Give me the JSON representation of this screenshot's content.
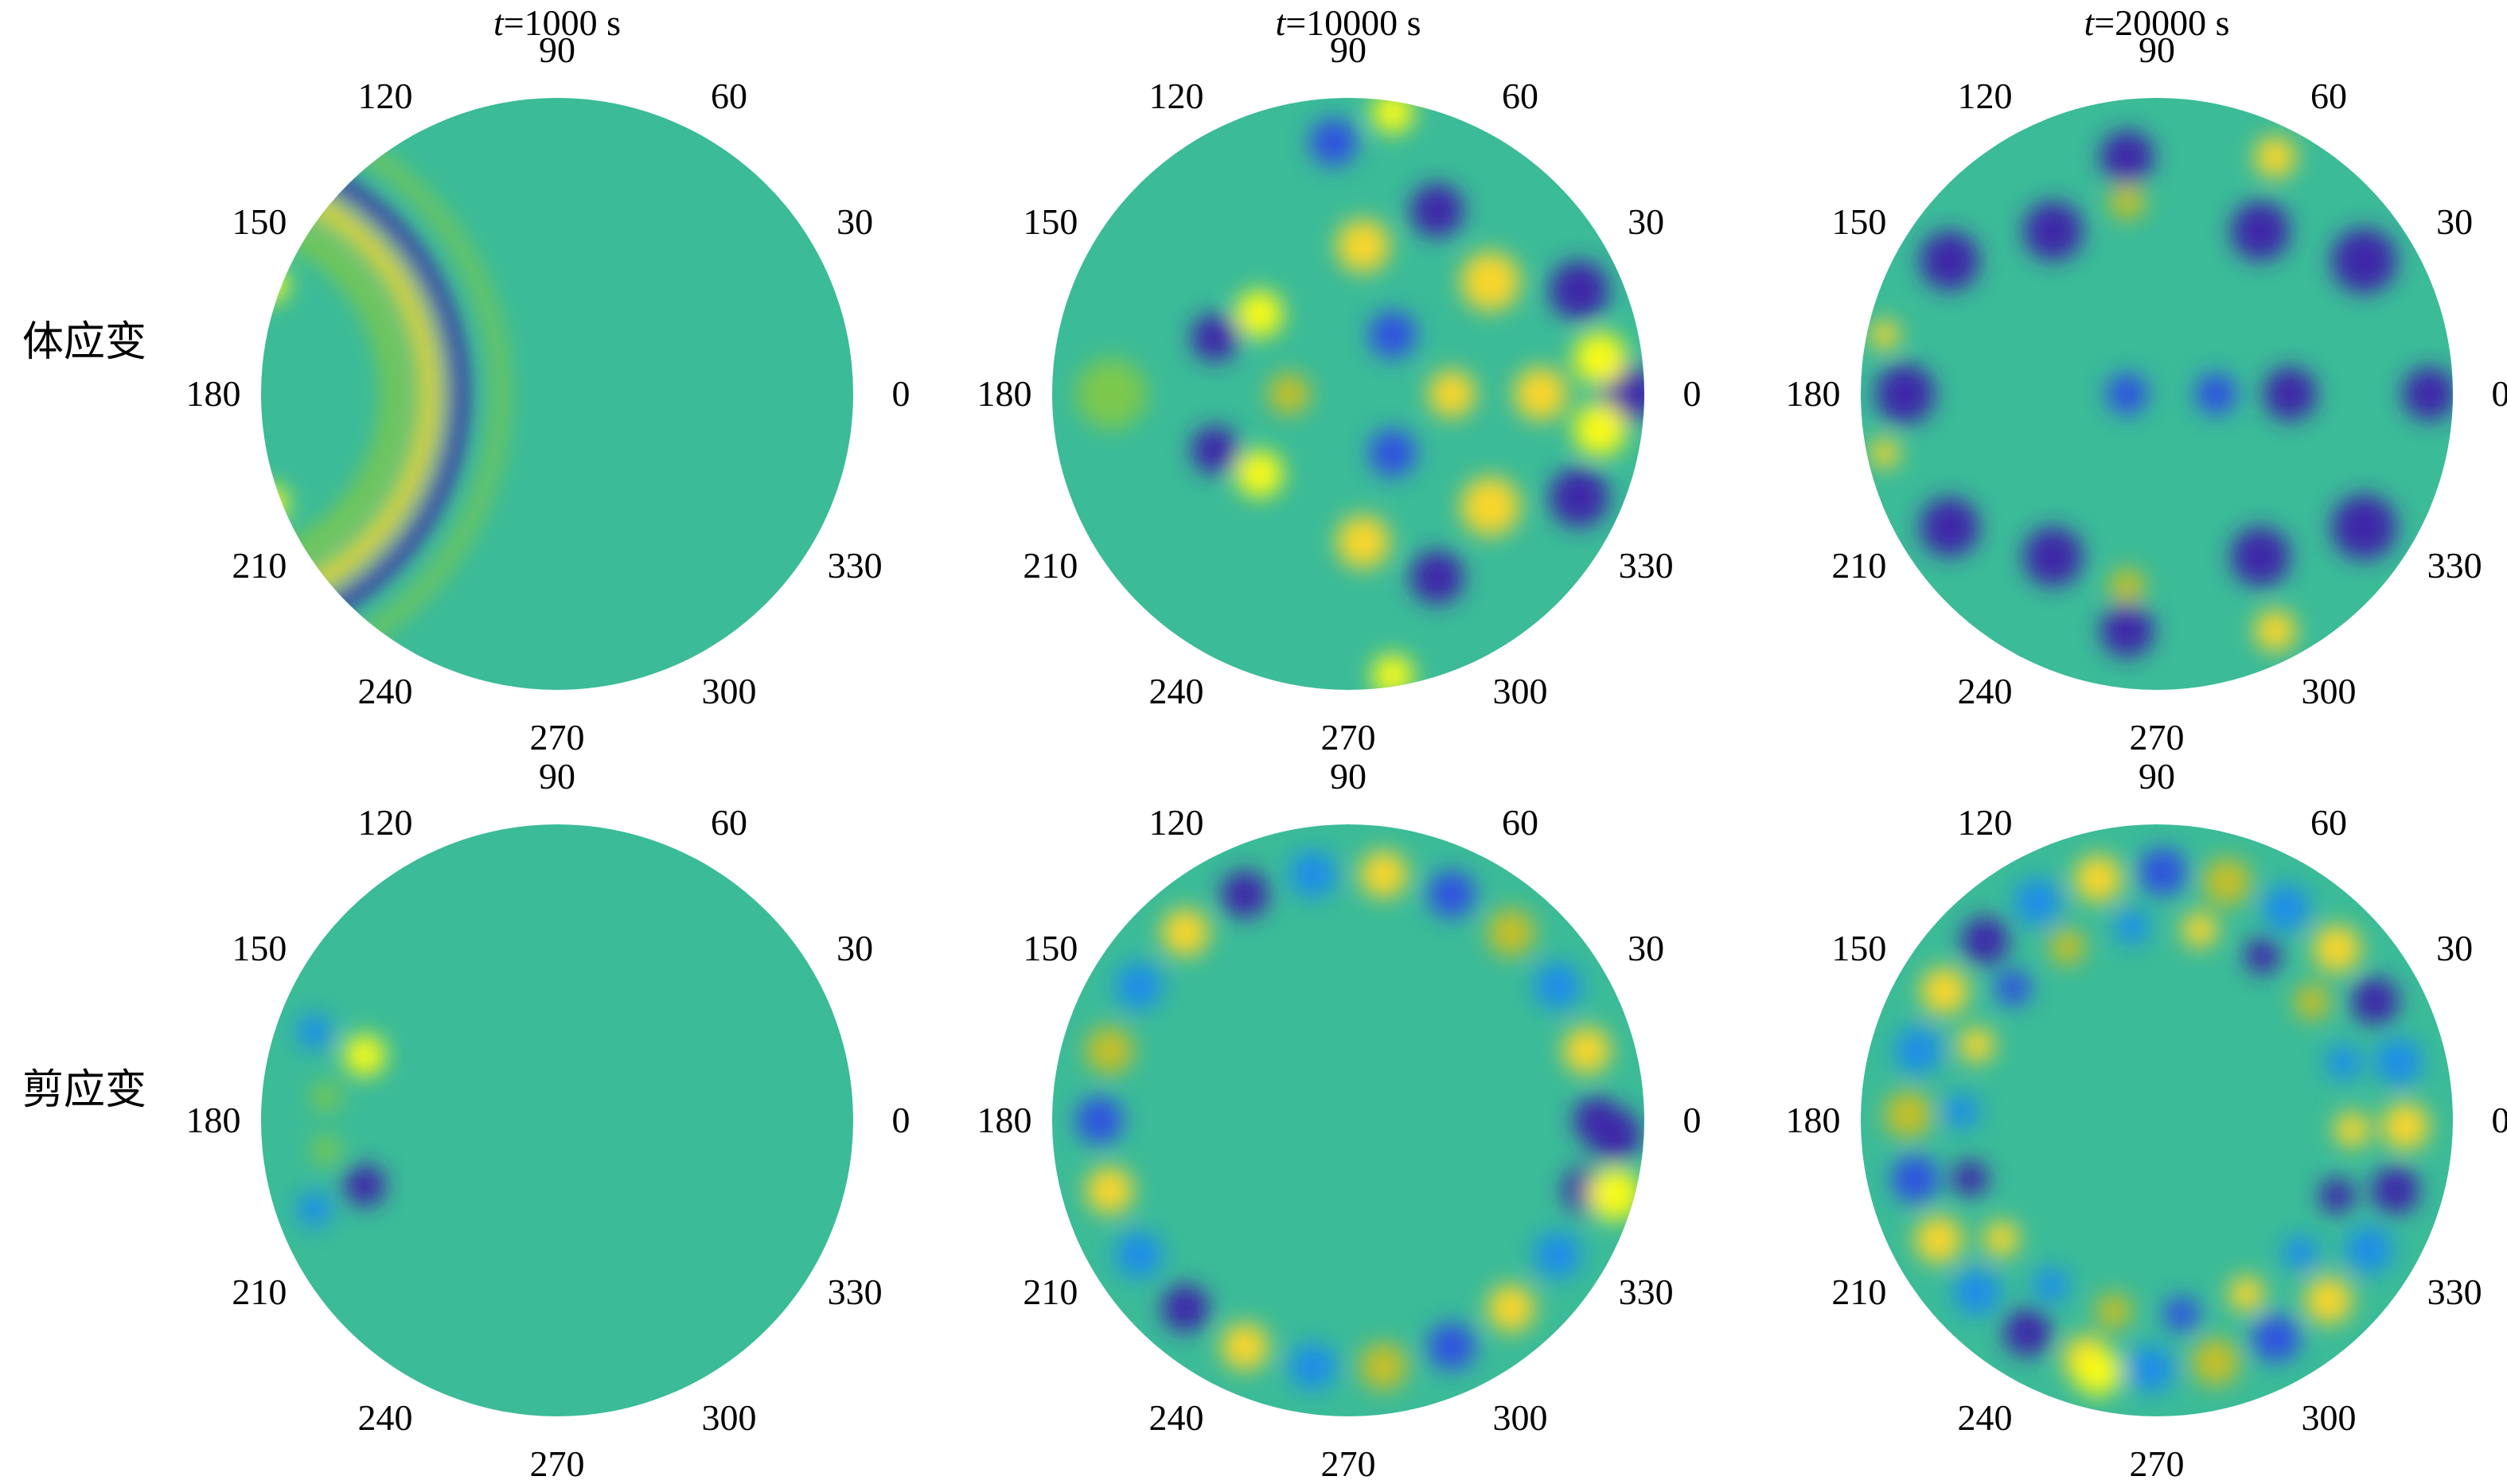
{
  "figure": {
    "column_titles": [
      {
        "var": "t",
        "rest": "=1000 s"
      },
      {
        "var": "t",
        "rest": "=10000 s"
      },
      {
        "var": "t",
        "rest": "=20000 s"
      }
    ],
    "row_labels": [
      "体应变",
      "剪应变"
    ]
  },
  "chart_data": {
    "type": "heatmap",
    "projection": "polar",
    "angular_ticks": [
      "0",
      "30",
      "60",
      "90",
      "120",
      "150",
      "180",
      "210",
      "240",
      "270",
      "300",
      "330"
    ],
    "colormap": [
      "#3e26a8",
      "#2f51e0",
      "#1e8ee8",
      "#16b5c9",
      "#3bbb98",
      "#7cc84e",
      "#c6bf28",
      "#f9d62b",
      "#f9fb15"
    ],
    "background_level": 0.45,
    "panels": [
      {
        "row": "体应变",
        "time": "t=1000 s",
        "features": [
          {
            "kind": "arc",
            "cx": -1.15,
            "cy": 0,
            "r": 0.82,
            "w": 0.06,
            "level": 0.05
          },
          {
            "kind": "arc",
            "cx": -1.15,
            "cy": 0,
            "r": 0.72,
            "w": 0.07,
            "level": 0.9
          },
          {
            "kind": "arc",
            "cx": -1.15,
            "cy": 0,
            "r": 0.96,
            "w": 0.05,
            "level": 0.62
          },
          {
            "kind": "arc",
            "cx": -1.15,
            "cy": 0,
            "r": 0.6,
            "w": 0.08,
            "level": 0.6
          },
          {
            "kind": "blob",
            "x": -0.97,
            "y": 0.37,
            "r": 0.06,
            "level": 0.95
          },
          {
            "kind": "blob",
            "x": -0.97,
            "y": -0.37,
            "r": 0.06,
            "level": 0.95
          }
        ]
      },
      {
        "row": "体应变",
        "time": "t=10000 s",
        "features": [
          {
            "kind": "blob",
            "x": 0.95,
            "y": 0.0,
            "r": 0.1,
            "level": 0.05
          },
          {
            "kind": "blob",
            "x": 0.85,
            "y": 0.12,
            "r": 0.09,
            "level": 0.95
          },
          {
            "kind": "blob",
            "x": 0.85,
            "y": -0.12,
            "r": 0.09,
            "level": 0.95
          },
          {
            "kind": "blob",
            "x": 0.65,
            "y": 0.0,
            "r": 0.09,
            "level": 0.9
          },
          {
            "kind": "blob",
            "x": 0.78,
            "y": 0.35,
            "r": 0.1,
            "level": 0.05
          },
          {
            "kind": "blob",
            "x": 0.78,
            "y": -0.35,
            "r": 0.1,
            "level": 0.05
          },
          {
            "kind": "blob",
            "x": 0.48,
            "y": 0.38,
            "r": 0.1,
            "level": 0.9
          },
          {
            "kind": "blob",
            "x": 0.48,
            "y": -0.38,
            "r": 0.1,
            "level": 0.9
          },
          {
            "kind": "blob",
            "x": 0.3,
            "y": 0.62,
            "r": 0.09,
            "level": 0.05
          },
          {
            "kind": "blob",
            "x": 0.3,
            "y": -0.62,
            "r": 0.09,
            "level": 0.05
          },
          {
            "kind": "blob",
            "x": 0.05,
            "y": 0.5,
            "r": 0.09,
            "level": 0.85
          },
          {
            "kind": "blob",
            "x": 0.05,
            "y": -0.5,
            "r": 0.09,
            "level": 0.85
          },
          {
            "kind": "blob",
            "x": 0.35,
            "y": 0.0,
            "r": 0.08,
            "level": 0.85
          },
          {
            "kind": "blob",
            "x": 0.15,
            "y": 0.2,
            "r": 0.08,
            "level": 0.08
          },
          {
            "kind": "blob",
            "x": 0.15,
            "y": -0.2,
            "r": 0.08,
            "level": 0.08
          },
          {
            "kind": "blob",
            "x": -0.3,
            "y": 0.27,
            "r": 0.08,
            "level": 0.95
          },
          {
            "kind": "blob",
            "x": -0.3,
            "y": -0.27,
            "r": 0.08,
            "level": 0.95
          },
          {
            "kind": "blob",
            "x": -0.45,
            "y": 0.19,
            "r": 0.08,
            "level": 0.05
          },
          {
            "kind": "blob",
            "x": -0.45,
            "y": -0.19,
            "r": 0.08,
            "level": 0.05
          },
          {
            "kind": "blob",
            "x": -0.2,
            "y": 0.0,
            "r": 0.07,
            "level": 0.8
          },
          {
            "kind": "blob",
            "x": -0.05,
            "y": 0.85,
            "r": 0.08,
            "level": 0.1
          },
          {
            "kind": "blob",
            "x": 0.15,
            "y": 0.95,
            "r": 0.07,
            "level": 0.95
          },
          {
            "kind": "blob",
            "x": 0.15,
            "y": -0.95,
            "r": 0.07,
            "level": 0.95
          },
          {
            "kind": "blob",
            "x": -0.8,
            "y": 0.0,
            "r": 0.12,
            "level": 0.62
          }
        ]
      },
      {
        "row": "体应变",
        "time": "t=20000 s",
        "features": [
          {
            "kind": "blob",
            "x": 0.92,
            "y": 0.0,
            "r": 0.09,
            "level": 0.05
          },
          {
            "kind": "blob",
            "x": 0.45,
            "y": 0.0,
            "r": 0.09,
            "level": 0.05
          },
          {
            "kind": "blob",
            "x": 0.2,
            "y": 0.0,
            "r": 0.07,
            "level": 0.1
          },
          {
            "kind": "blob",
            "x": -0.1,
            "y": 0.0,
            "r": 0.07,
            "level": 0.1
          },
          {
            "kind": "blob",
            "x": -0.85,
            "y": 0.0,
            "r": 0.1,
            "level": 0.05
          },
          {
            "kind": "blob",
            "x": 0.7,
            "y": 0.45,
            "r": 0.11,
            "level": 0.05
          },
          {
            "kind": "blob",
            "x": 0.7,
            "y": -0.45,
            "r": 0.11,
            "level": 0.05
          },
          {
            "kind": "blob",
            "x": 0.35,
            "y": 0.55,
            "r": 0.1,
            "level": 0.05
          },
          {
            "kind": "blob",
            "x": 0.35,
            "y": -0.55,
            "r": 0.1,
            "level": 0.05
          },
          {
            "kind": "blob",
            "x": -0.35,
            "y": 0.55,
            "r": 0.1,
            "level": 0.05
          },
          {
            "kind": "blob",
            "x": -0.35,
            "y": -0.55,
            "r": 0.1,
            "level": 0.05
          },
          {
            "kind": "blob",
            "x": -0.7,
            "y": 0.45,
            "r": 0.1,
            "level": 0.05
          },
          {
            "kind": "blob",
            "x": -0.7,
            "y": -0.45,
            "r": 0.1,
            "level": 0.05
          },
          {
            "kind": "blob",
            "x": -0.1,
            "y": 0.8,
            "r": 0.09,
            "level": 0.05
          },
          {
            "kind": "blob",
            "x": -0.1,
            "y": -0.8,
            "r": 0.09,
            "level": 0.05
          },
          {
            "kind": "blob",
            "x": 0.4,
            "y": 0.8,
            "r": 0.07,
            "level": 0.9
          },
          {
            "kind": "blob",
            "x": 0.4,
            "y": -0.8,
            "r": 0.07,
            "level": 0.9
          },
          {
            "kind": "blob",
            "x": -0.1,
            "y": 0.65,
            "r": 0.06,
            "level": 0.8
          },
          {
            "kind": "blob",
            "x": -0.1,
            "y": -0.65,
            "r": 0.06,
            "level": 0.8
          },
          {
            "kind": "blob",
            "x": -0.92,
            "y": 0.2,
            "r": 0.05,
            "level": 0.85
          },
          {
            "kind": "blob",
            "x": -0.92,
            "y": -0.2,
            "r": 0.05,
            "level": 0.85
          }
        ]
      },
      {
        "row": "剪应变",
        "time": "t=1000 s",
        "features": [
          {
            "kind": "blob",
            "x": -0.65,
            "y": 0.22,
            "r": 0.07,
            "level": 0.97
          },
          {
            "kind": "blob",
            "x": -0.65,
            "y": -0.22,
            "r": 0.07,
            "level": 0.02
          },
          {
            "kind": "blob",
            "x": -0.82,
            "y": 0.3,
            "r": 0.06,
            "level": 0.25
          },
          {
            "kind": "blob",
            "x": -0.82,
            "y": -0.3,
            "r": 0.06,
            "level": 0.3
          },
          {
            "kind": "blob",
            "x": -0.78,
            "y": 0.08,
            "r": 0.05,
            "level": 0.6
          },
          {
            "kind": "blob",
            "x": -0.78,
            "y": -0.1,
            "r": 0.05,
            "level": 0.6
          }
        ]
      },
      {
        "row": "剪应变",
        "time": "t=10000 s",
        "features": [
          {
            "kind": "ring",
            "r": 0.84,
            "count": 22,
            "size": 0.08,
            "phase": 0.0
          },
          {
            "kind": "blob",
            "x": 0.9,
            "y": -0.05,
            "r": 0.09,
            "level": 0.05
          },
          {
            "kind": "blob",
            "x": 0.9,
            "y": -0.25,
            "r": 0.09,
            "level": 0.97
          }
        ]
      },
      {
        "row": "剪应变",
        "time": "t=20000 s",
        "features": [
          {
            "kind": "ring",
            "r": 0.84,
            "count": 24,
            "size": 0.08,
            "phase": 0.5
          },
          {
            "kind": "ring",
            "r": 0.66,
            "count": 18,
            "size": 0.06,
            "phase": 1.0
          },
          {
            "kind": "blob",
            "x": -0.2,
            "y": -0.85,
            "r": 0.08,
            "level": 0.97
          }
        ]
      }
    ]
  }
}
